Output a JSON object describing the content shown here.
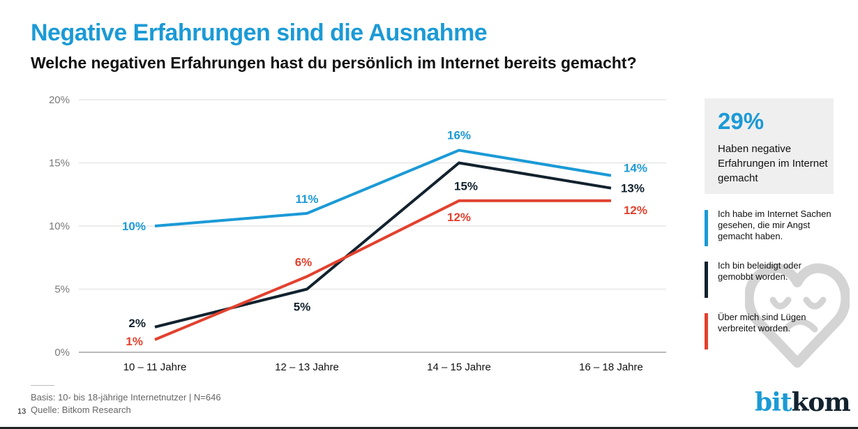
{
  "header": {
    "title": "Negative Erfahrungen sind die Ausnahme",
    "subtitle": "Welche negativen Erfahrungen hast du persönlich im Internet bereits gemacht?"
  },
  "chart_data": {
    "type": "line",
    "title": "Negative Erfahrungen sind die Ausnahme",
    "subtitle": "Welche negativen Erfahrungen hast du persönlich im Internet bereits gemacht?",
    "xlabel": "",
    "ylabel": "",
    "categories": [
      "10 – 11 Jahre",
      "12 – 13 Jahre",
      "14 – 15 Jahre",
      "16 – 18 Jahre"
    ],
    "ylim": [
      0,
      20
    ],
    "yticks": [
      0,
      5,
      10,
      15,
      20
    ],
    "ytick_labels": [
      "0%",
      "5%",
      "10%",
      "15%",
      "20%"
    ],
    "grid": true,
    "legend_position": "right",
    "series": [
      {
        "name": "Ich habe im Internet Sachen gesehen, die mir Angst gemacht haben.",
        "color": "#1b9ad6",
        "values": [
          10,
          11,
          16,
          14
        ],
        "labels": [
          "10%",
          "11%",
          "16%",
          "14%"
        ]
      },
      {
        "name": "Ich bin beleidigt oder gemobbt worden.",
        "color": "#12222e",
        "values": [
          2,
          5,
          15,
          13
        ],
        "labels": [
          "2%",
          "5%",
          "15%",
          "13%"
        ]
      },
      {
        "name": "Über mich sind Lügen verbreitet worden.",
        "color": "#e2412e",
        "values": [
          1,
          6,
          12,
          12
        ],
        "labels": [
          "1%",
          "6%",
          "12%",
          "12%"
        ]
      }
    ]
  },
  "kpi": {
    "value": "29%",
    "text": "Haben negative Erfahrungen im Internet gemacht"
  },
  "legend": [
    {
      "label": "Ich habe im Internet Sachen gesehen, die mir Angst gemacht haben.",
      "color": "#1b9ad6"
    },
    {
      "label": "Ich bin beleidigt oder gemobbt worden.",
      "color": "#12222e"
    },
    {
      "label": "Über mich sind Lügen verbreitet worden.",
      "color": "#e2412e"
    }
  ],
  "icons": {
    "watermark": "heart-smile-icon"
  },
  "footer": {
    "basis": "Basis: 10- bis 18-jährige Internetnutzer | N=646",
    "source": "Quelle: Bitkom Research",
    "page_number": "13"
  },
  "logo": {
    "part1": "bit",
    "part2": "kom"
  }
}
